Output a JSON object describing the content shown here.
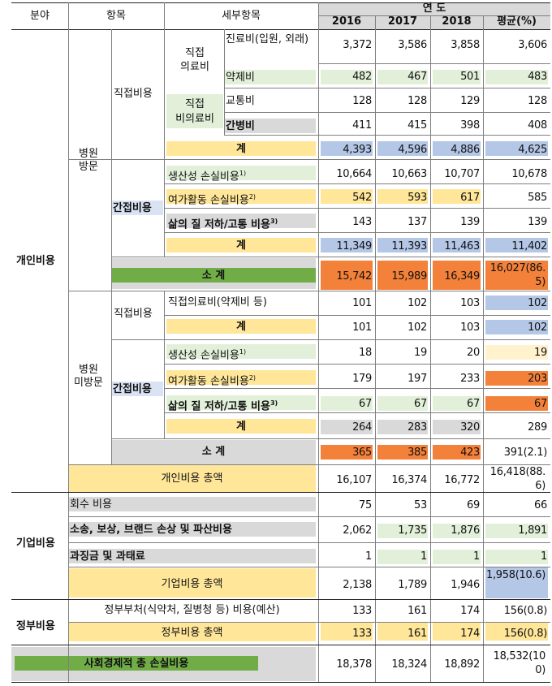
{
  "header": {
    "field": "분야",
    "item": "항목",
    "detail": "세부항목",
    "year_group": "연 도",
    "years": [
      "2016",
      "2017",
      "2018",
      "평균(%)"
    ]
  },
  "fields": {
    "personal": "개인비용",
    "company": "기업비용",
    "government": "정부비용"
  },
  "groups": {
    "hospital_visit": [
      "병원",
      "방문"
    ],
    "hospital_nonvisit": [
      "병원",
      "미방문"
    ]
  },
  "rows": [
    {
      "item": "직접비용",
      "sub": [
        "직접",
        "의료비"
      ],
      "detail": "진료비(입원, 외래)",
      "values": [
        "3,372",
        "3,586",
        "3,858",
        "3,606"
      ]
    },
    {
      "detail": "약제비",
      "values": [
        "482",
        "467",
        "501",
        "483"
      ]
    },
    {
      "sub": [
        "직접",
        "비의료비"
      ],
      "detail": "교통비",
      "values": [
        "128",
        "128",
        "129",
        "128"
      ]
    },
    {
      "detail": "간병비",
      "values": [
        "411",
        "415",
        "398",
        "408"
      ]
    },
    {
      "detail": "계",
      "values": [
        "4,393",
        "4,596",
        "4,886",
        "4,625"
      ]
    },
    {
      "item": "간접비용",
      "detail": "생산성 손실비용1)",
      "values": [
        "10,664",
        "10,663",
        "10,707",
        "10,678"
      ]
    },
    {
      "detail": "여가활동 손실비용2)",
      "values": [
        "542",
        "593",
        "617",
        "585"
      ]
    },
    {
      "detail": "삶의 질 저하/고통 비용3)",
      "values": [
        "143",
        "137",
        "139",
        "139"
      ]
    },
    {
      "detail": "계",
      "values": [
        "11,349",
        "11,393",
        "11,463",
        "11,402"
      ]
    },
    {
      "detail": "소 계",
      "values": [
        "15,742",
        "15,989",
        "16,349",
        "16,027(86.5)"
      ]
    },
    {
      "item": "직접비용",
      "detail": "직접의료비(약제비 등)",
      "values": [
        "101",
        "102",
        "103",
        "102"
      ]
    },
    {
      "detail": "계",
      "values": [
        "101",
        "102",
        "103",
        "102"
      ]
    },
    {
      "item": "간접비용",
      "detail": "생산성 손실비용1)",
      "values": [
        "18",
        "19",
        "20",
        "19"
      ]
    },
    {
      "detail": "여가활동 손실비용2)",
      "values": [
        "179",
        "197",
        "233",
        "203"
      ]
    },
    {
      "detail": "삶의 질 저하/고통 비용3)",
      "values": [
        "67",
        "67",
        "67",
        "67"
      ]
    },
    {
      "detail": "계",
      "values": [
        "264",
        "283",
        "320",
        "289"
      ]
    },
    {
      "detail": "소 계",
      "values": [
        "365",
        "385",
        "423",
        "391(2.1)"
      ]
    },
    {
      "detail": "개인비용 총액",
      "values": [
        "16,107",
        "16,374",
        "16,772",
        "16,418(88.6)"
      ]
    },
    {
      "detail": "회수 비용",
      "values": [
        "75",
        "53",
        "69",
        "66"
      ]
    },
    {
      "detail": "소송, 보상, 브랜드 손상 및 파산비용",
      "values": [
        "2,062",
        "1,735",
        "1,876",
        "1,891"
      ]
    },
    {
      "detail": "과징금 및 과태료",
      "values": [
        "1",
        "1",
        "1",
        "1"
      ]
    },
    {
      "detail": "기업비용 총액",
      "values": [
        "2,138",
        "1,789",
        "1,946",
        "1,958(10.6)"
      ]
    },
    {
      "detail": "정부부처(식약처, 질병청 등) 비용(예산)",
      "values": [
        "133",
        "161",
        "174",
        "156(0.8)"
      ]
    },
    {
      "detail": "정부비용 총액",
      "values": [
        "133",
        "161",
        "174",
        "156(0.8)"
      ]
    },
    {
      "detail": "사회경제적 총 손실비용",
      "values": [
        "18,378",
        "18,324",
        "18,892",
        "18,532(100)"
      ]
    }
  ],
  "colors": {
    "green_light": "#e2f0d9",
    "yellow": "#ffe699",
    "yellow_light": "#fff2cc",
    "blue": "#b4c7e7",
    "blue_light": "#dae3f3",
    "orange": "#f4813a",
    "gray": "#d9d9d9",
    "green_dark": "#70ad47",
    "header_gray": "#d9d9d9"
  }
}
